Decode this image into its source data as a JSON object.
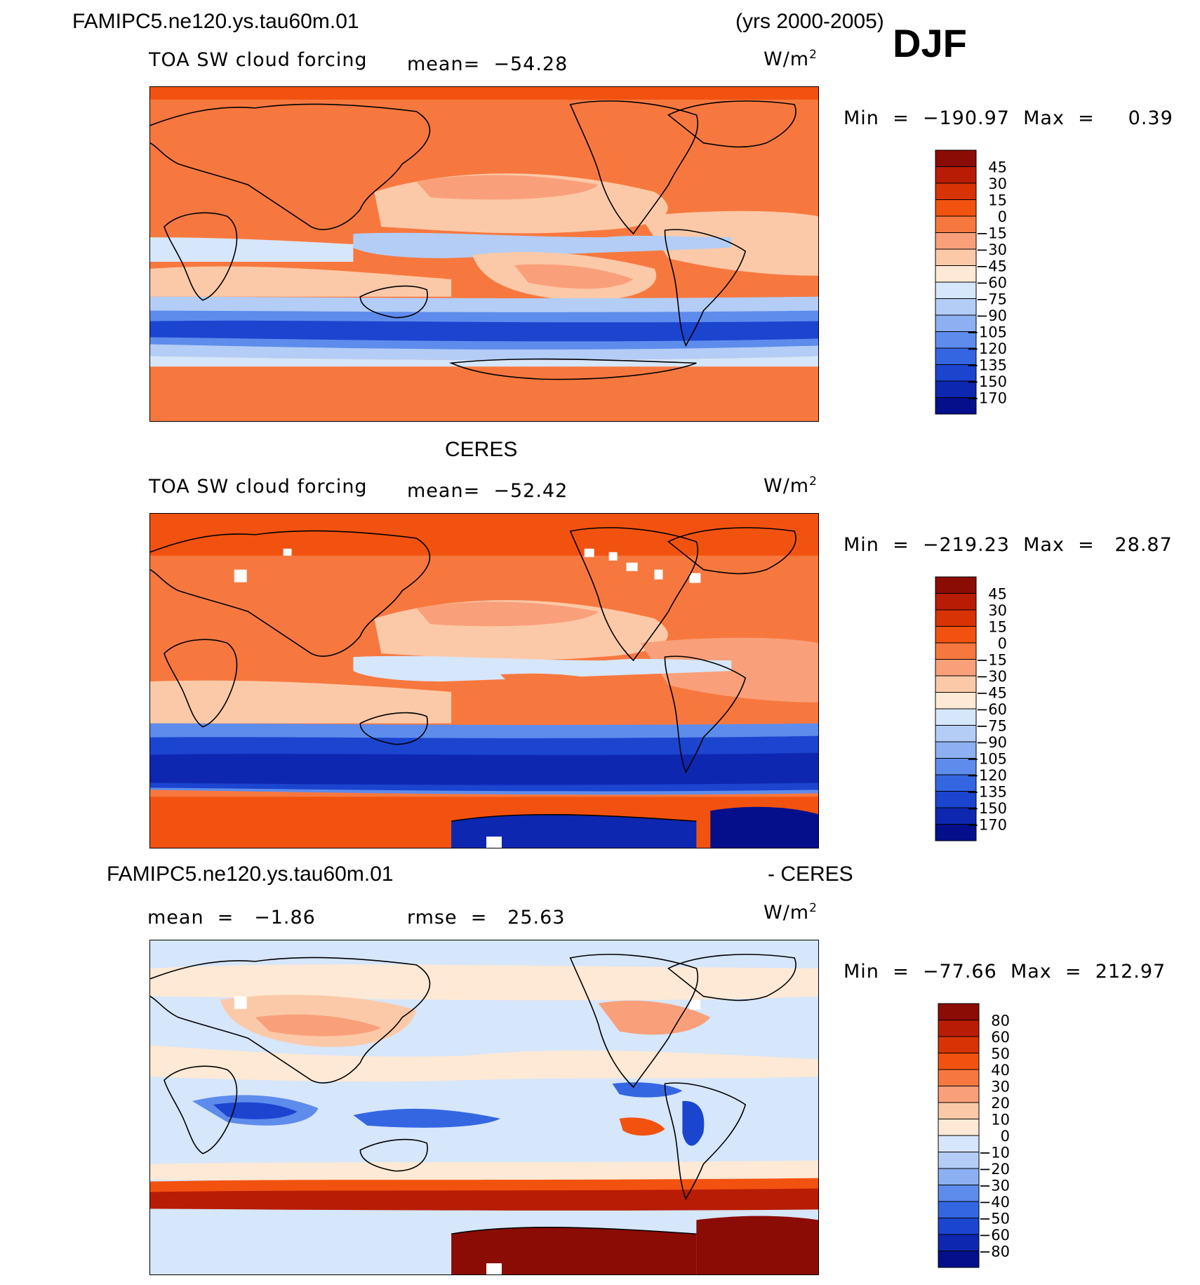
{
  "header": {
    "case_name": "FAMIPC5.ne120.ys.tau60m.01",
    "years": "(yrs 2000-2005)",
    "season": "DJF"
  },
  "panels": [
    {
      "title": "",
      "variable": "TOA SW cloud forcing",
      "mean": "mean=  −54.28",
      "units": "W/m",
      "units_sup": "2",
      "minmax_label": "Min  =  −190.97  Max  =     0.39",
      "colorbar": {
        "labels": [
          "45",
          "30",
          "15",
          "0",
          "−15",
          "−30",
          "−45",
          "−60",
          "−75",
          "−90",
          "−105",
          "−120",
          "−135",
          "−150",
          "−170"
        ],
        "colors": [
          "#8b0c05",
          "#b81c04",
          "#d83304",
          "#f2520f",
          "#f7783f",
          "#f9a07a",
          "#fcc9a8",
          "#fde9d5",
          "#d6e6fb",
          "#b3cdf6",
          "#8cb0f1",
          "#5e8cec",
          "#3566e2",
          "#1b44cf",
          "#0e27b0",
          "#050f8b"
        ]
      },
      "map_colors": {
        "ocean_mid": "#fcc9a8",
        "land": "#f7783f",
        "storm_track": "#1b44cf",
        "polar": "#f7783f"
      }
    },
    {
      "title": "CERES",
      "variable": "TOA SW cloud forcing",
      "mean": "mean=  −52.42",
      "units": "W/m",
      "units_sup": "2",
      "minmax_label": "Min  =  −219.23  Max  =   28.87",
      "colorbar": {
        "labels": [
          "45",
          "30",
          "15",
          "0",
          "−15",
          "−30",
          "−45",
          "−60",
          "−75",
          "−90",
          "−105",
          "−120",
          "−135",
          "−150",
          "−170"
        ],
        "colors": [
          "#8b0c05",
          "#b81c04",
          "#d83304",
          "#f2520f",
          "#f7783f",
          "#f9a07a",
          "#fcc9a8",
          "#fde9d5",
          "#d6e6fb",
          "#b3cdf6",
          "#8cb0f1",
          "#5e8cec",
          "#3566e2",
          "#1b44cf",
          "#0e27b0",
          "#050f8b"
        ]
      }
    },
    {
      "title": "FAMIPC5.ne120.ys.tau60m.01",
      "title_suffix": "- CERES",
      "mean": "mean  =   −1.86",
      "rmse": "rmse  =   25.63",
      "units": "W/m",
      "units_sup": "2",
      "minmax_label": "Min  =  −77.66  Max  =  212.97",
      "colorbar": {
        "labels": [
          "80",
          "60",
          "50",
          "40",
          "30",
          "20",
          "10",
          "0",
          "−10",
          "−20",
          "−30",
          "−40",
          "−50",
          "−60",
          "−80"
        ],
        "colors": [
          "#8b0c05",
          "#b81c04",
          "#d83304",
          "#f2520f",
          "#f7783f",
          "#f9a07a",
          "#fcc9a8",
          "#fde9d5",
          "#d6e6fb",
          "#b3cdf6",
          "#8cb0f1",
          "#5e8cec",
          "#3566e2",
          "#1b44cf",
          "#0e27b0",
          "#050f8b"
        ]
      }
    }
  ]
}
